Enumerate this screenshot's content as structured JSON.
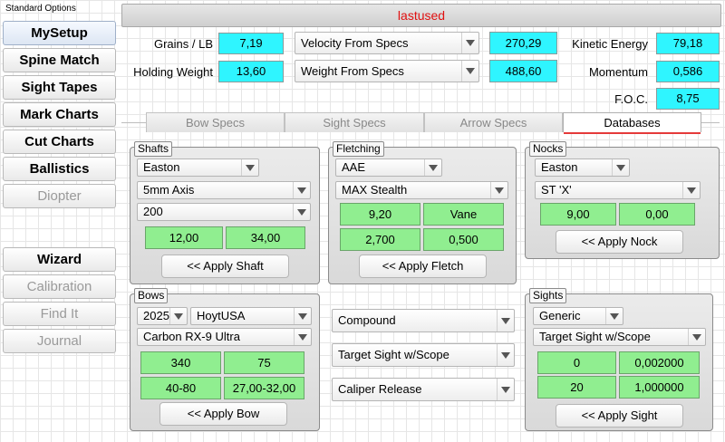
{
  "sidebar": {
    "title": "Standard Options",
    "items": [
      {
        "label": "MySetup"
      },
      {
        "label": "Spine Match"
      },
      {
        "label": "Sight Tapes"
      },
      {
        "label": "Mark Charts"
      },
      {
        "label": "Cut Charts"
      },
      {
        "label": "Ballistics"
      },
      {
        "label": "Diopter"
      },
      {
        "label": "Wizard"
      },
      {
        "label": "Calibration"
      },
      {
        "label": "Find It"
      },
      {
        "label": "Journal"
      }
    ]
  },
  "header": {
    "title": "lastused"
  },
  "stats": {
    "grains_per_lb_label": "Grains / LB",
    "grains_per_lb": "7,19",
    "holding_weight_label": "Holding Weight",
    "holding_weight": "13,60",
    "velocity_select": "Velocity From Specs",
    "velocity": "270,29",
    "weight_select": "Weight From Specs",
    "weight": "488,60",
    "kinetic_energy_label": "Kinetic Energy",
    "kinetic_energy": "79,18",
    "momentum_label": "Momentum",
    "momentum": "0,586",
    "foc_label": "F.O.C.",
    "foc": "8,75"
  },
  "tabs": [
    {
      "label": "Bow Specs"
    },
    {
      "label": "Sight Specs"
    },
    {
      "label": "Arrow Specs"
    },
    {
      "label": "Databases"
    }
  ],
  "shafts": {
    "title": "Shafts",
    "maker": "Easton",
    "model": "5mm Axis",
    "spine": "200",
    "val1": "12,00",
    "val2": "34,00",
    "apply": "<< Apply Shaft"
  },
  "fletching": {
    "title": "Fletching",
    "maker": "AAE",
    "model": "MAX Stealth",
    "val1": "9,20",
    "val2": "Vane",
    "val3": "2,700",
    "val4": "0,500",
    "apply": "<< Apply Fletch"
  },
  "nocks": {
    "title": "Nocks",
    "maker": "Easton",
    "model": "ST 'X'",
    "val1": "9,00",
    "val2": "0,00",
    "apply": "<< Apply Nock"
  },
  "bows": {
    "title": "Bows",
    "year": "2025",
    "maker": "HoytUSA",
    "model": "Carbon RX-9 Ultra",
    "val1": "340",
    "val2": "75",
    "val3": "40-80",
    "val4": "27,00-32,00",
    "apply": "<< Apply Bow"
  },
  "middle": {
    "bow_type": "Compound",
    "sight_type": "Target Sight w/Scope",
    "release_type": "Caliper Release"
  },
  "sights": {
    "title": "Sights",
    "maker": "Generic",
    "model": "Target Sight w/Scope",
    "val1": "0",
    "val2": "0,002000",
    "val3": "20",
    "val4": "1,000000",
    "apply": "<< Apply Sight"
  },
  "colors": {
    "accent_red": "#e01010",
    "cyan_field": "#2ff5ff",
    "green_field": "#90ee90"
  }
}
